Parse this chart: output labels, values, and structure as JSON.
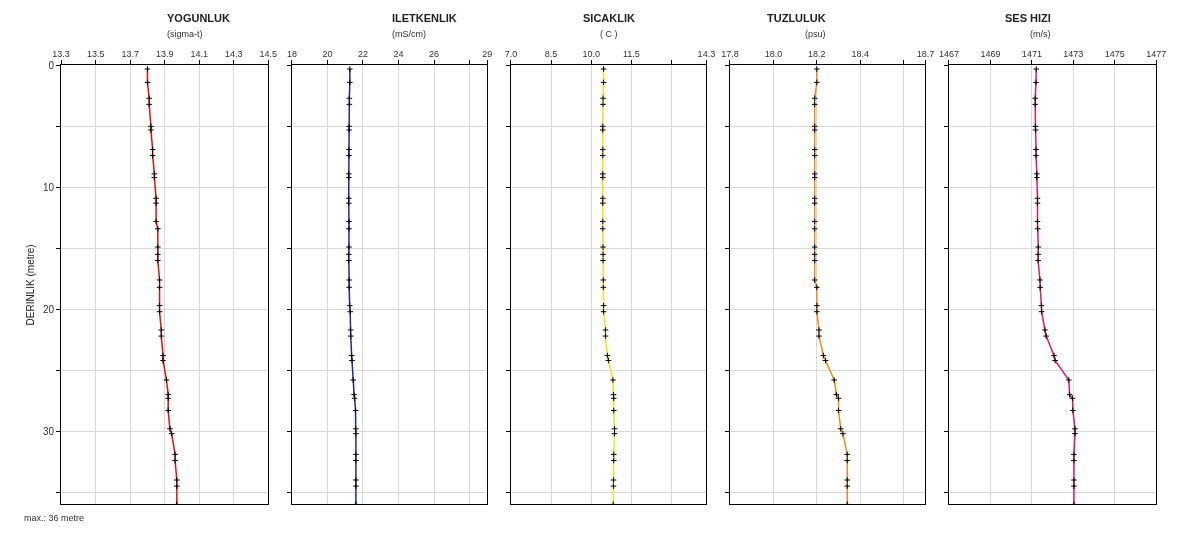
{
  "chart_data": [
    {
      "type": "line",
      "orientation": "horizontal",
      "title": "YOGUNLUK",
      "subtitle": "(sigma-t)",
      "ylabel": "DERINLIK (metre)",
      "annotations": [
        "max.: 36 metre"
      ],
      "grid": true,
      "marker": "cross",
      "line_style": "solid",
      "x": [
        0.3,
        1.4,
        2.7,
        3.2,
        5.0,
        5.3,
        6.9,
        7.4,
        8.9,
        9.2,
        10.9,
        11.3,
        12.8,
        13.4,
        14.9,
        15.5,
        16.0,
        17.6,
        18.2,
        19.7,
        20.2,
        21.7,
        22.2,
        23.8,
        24.2,
        25.8,
        27.0,
        27.3,
        28.3,
        29.8,
        30.2,
        31.9,
        32.4,
        34.0,
        34.5,
        36.0
      ],
      "series": [
        {
          "color": "#e01010",
          "values": [
            13.8,
            13.8,
            13.81,
            13.81,
            13.82,
            13.82,
            13.83,
            13.83,
            13.84,
            13.84,
            13.85,
            13.85,
            13.85,
            13.86,
            13.86,
            13.86,
            13.86,
            13.87,
            13.87,
            13.87,
            13.87,
            13.88,
            13.88,
            13.89,
            13.89,
            13.91,
            13.92,
            13.92,
            13.92,
            13.93,
            13.94,
            13.96,
            13.96,
            13.97,
            13.97,
            13.97
          ]
        }
      ],
      "xlim": [
        13.3,
        14.5
      ],
      "xticks": [
        13.3,
        13.5,
        13.7,
        13.9,
        14.1,
        14.3,
        14.5
      ],
      "ylim": [
        36,
        0
      ],
      "yticks": [
        0,
        {
          "value": 5,
          "label": null
        },
        10,
        {
          "value": 15,
          "label": null
        },
        20,
        {
          "value": 25,
          "label": null
        },
        30,
        {
          "value": 35,
          "label": null
        }
      ]
    },
    {
      "type": "line",
      "orientation": "horizontal",
      "title": "ILETKENLIK",
      "subtitle": "(mS/cm)",
      "grid": true,
      "marker": "cross",
      "line_style": "solid",
      "tick_labels": "x",
      "x": [
        0.3,
        1.4,
        2.7,
        3.2,
        5.0,
        5.3,
        6.9,
        7.4,
        8.9,
        9.2,
        10.9,
        11.3,
        12.8,
        13.4,
        14.9,
        15.5,
        16.0,
        17.6,
        18.2,
        19.7,
        20.2,
        21.7,
        22.2,
        23.8,
        24.2,
        25.8,
        27.0,
        27.3,
        28.3,
        29.8,
        30.2,
        31.9,
        32.4,
        34.0,
        34.5,
        36.0
      ],
      "series": [
        {
          "color": "#1c2a8c",
          "values": [
            21.26,
            21.26,
            21.23,
            21.23,
            21.22,
            21.22,
            21.21,
            21.21,
            21.2,
            21.2,
            21.2,
            21.2,
            21.21,
            21.21,
            21.21,
            21.2,
            21.2,
            21.22,
            21.22,
            21.25,
            21.28,
            21.3,
            21.31,
            21.36,
            21.38,
            21.45,
            21.5,
            21.53,
            21.58,
            21.59,
            21.6,
            21.6,
            21.6,
            21.6,
            21.6,
            21.6
          ]
        }
      ],
      "xlim": [
        18,
        29
      ],
      "xticks": [
        18,
        20,
        22,
        24,
        26,
        {
          "value": 28,
          "label": null
        },
        29
      ],
      "ylim": [
        36,
        0
      ],
      "yticks": [
        0,
        {
          "value": 5,
          "label": null
        },
        10,
        {
          "value": 15,
          "label": null
        },
        20,
        {
          "value": 25,
          "label": null
        },
        30,
        {
          "value": 35,
          "label": null
        }
      ]
    },
    {
      "type": "line",
      "orientation": "horizontal",
      "title": "SICAKLIK",
      "subtitle": "( C )",
      "grid": true,
      "marker": "cross",
      "line_style": "solid",
      "tick_labels": "x",
      "x": [
        0.3,
        1.4,
        2.7,
        3.2,
        5.0,
        5.3,
        6.9,
        7.4,
        8.9,
        9.2,
        10.9,
        11.3,
        12.8,
        13.4,
        14.9,
        15.5,
        16.0,
        17.6,
        18.2,
        19.7,
        20.2,
        21.7,
        22.2,
        23.8,
        24.2,
        25.8,
        27.0,
        27.3,
        28.3,
        29.8,
        30.2,
        31.9,
        32.4,
        34.0,
        34.5,
        36.0
      ],
      "series": [
        {
          "color": "#f0e020",
          "values": [
            10.46,
            10.46,
            10.44,
            10.44,
            10.43,
            10.43,
            10.43,
            10.43,
            10.43,
            10.43,
            10.43,
            10.43,
            10.43,
            10.43,
            10.44,
            10.44,
            10.44,
            10.45,
            10.45,
            10.46,
            10.46,
            10.53,
            10.53,
            10.6,
            10.64,
            10.81,
            10.83,
            10.84,
            10.84,
            10.87,
            10.87,
            10.84,
            10.84,
            10.83,
            10.83,
            10.82
          ]
        }
      ],
      "xlim": [
        7.0,
        14.3
      ],
      "xticks": [
        {
          "value": 7.0,
          "label": "7.0"
        },
        8.5,
        {
          "value": 10.0,
          "label": "10.0"
        },
        11.5,
        {
          "value": 13.0,
          "label": null
        },
        14.3
      ],
      "ylim": [
        36,
        0
      ],
      "yticks": [
        0,
        {
          "value": 5,
          "label": null
        },
        10,
        {
          "value": 15,
          "label": null
        },
        20,
        {
          "value": 25,
          "label": null
        },
        30,
        {
          "value": 35,
          "label": null
        }
      ]
    },
    {
      "type": "line",
      "orientation": "horizontal",
      "title": "TUZLULUK",
      "subtitle": "(psu)",
      "grid": true,
      "marker": "cross",
      "line_style": "solid",
      "tick_labels": "x",
      "x": [
        0.3,
        1.4,
        2.7,
        3.2,
        5.0,
        5.3,
        6.9,
        7.4,
        8.9,
        9.2,
        10.9,
        11.3,
        12.8,
        13.4,
        14.9,
        15.5,
        16.0,
        17.6,
        18.2,
        19.7,
        20.2,
        21.7,
        22.2,
        23.8,
        24.2,
        25.8,
        27.0,
        27.3,
        28.3,
        29.8,
        30.2,
        31.9,
        32.4,
        34.0,
        34.5,
        36.0
      ],
      "series": [
        {
          "color": "#f08a1c",
          "values": [
            18.2,
            18.2,
            18.19,
            18.19,
            18.19,
            18.19,
            18.19,
            18.19,
            18.19,
            18.19,
            18.19,
            18.19,
            18.19,
            18.19,
            18.19,
            18.19,
            18.19,
            18.19,
            18.2,
            18.2,
            18.2,
            18.21,
            18.21,
            18.23,
            18.24,
            18.28,
            18.29,
            18.3,
            18.3,
            18.31,
            18.32,
            18.34,
            18.34,
            18.34,
            18.34,
            18.34
          ]
        }
      ],
      "xlim": [
        17.8,
        18.7
      ],
      "xticks": [
        17.8,
        {
          "value": 18.0,
          "label": "18.0"
        },
        18.2,
        18.4,
        {
          "value": 18.6,
          "label": null
        },
        18.7
      ],
      "ylim": [
        36,
        0
      ],
      "yticks": [
        0,
        {
          "value": 5,
          "label": null
        },
        10,
        {
          "value": 15,
          "label": null
        },
        20,
        {
          "value": 25,
          "label": null
        },
        30,
        {
          "value": 35,
          "label": null
        }
      ]
    },
    {
      "type": "line",
      "orientation": "horizontal",
      "title": "SES HIZI",
      "subtitle": "(m/s)",
      "grid": true,
      "marker": "cross",
      "line_style": "solid",
      "tick_labels": "x",
      "x": [
        0.3,
        1.4,
        2.7,
        3.2,
        5.0,
        5.3,
        6.9,
        7.4,
        8.9,
        9.2,
        10.9,
        11.3,
        12.8,
        13.4,
        14.9,
        15.5,
        16.0,
        17.6,
        18.2,
        19.7,
        20.2,
        21.7,
        22.2,
        23.8,
        24.2,
        25.8,
        27.0,
        27.3,
        28.3,
        29.8,
        30.2,
        31.9,
        32.4,
        34.0,
        34.5,
        36.0
      ],
      "series": [
        {
          "color": "#e0186a",
          "values": [
            1471.21,
            1471.2,
            1471.16,
            1471.16,
            1471.17,
            1471.18,
            1471.2,
            1471.2,
            1471.24,
            1471.24,
            1471.27,
            1471.27,
            1471.27,
            1471.28,
            1471.31,
            1471.3,
            1471.3,
            1471.39,
            1471.4,
            1471.46,
            1471.47,
            1471.63,
            1471.69,
            1472.07,
            1472.12,
            1472.78,
            1472.82,
            1472.96,
            1472.98,
            1473.08,
            1473.08,
            1473.03,
            1473.03,
            1473.03,
            1473.03,
            1473.03
          ]
        }
      ],
      "xlim": [
        1467,
        1477
      ],
      "xticks": [
        1467,
        1469,
        1471,
        1473,
        1475,
        1477
      ],
      "ylim": [
        36,
        0
      ],
      "yticks": [
        0,
        {
          "value": 5,
          "label": null
        },
        10,
        {
          "value": 15,
          "label": null
        },
        20,
        {
          "value": 25,
          "label": null
        },
        30,
        {
          "value": 35,
          "label": null
        }
      ]
    }
  ]
}
